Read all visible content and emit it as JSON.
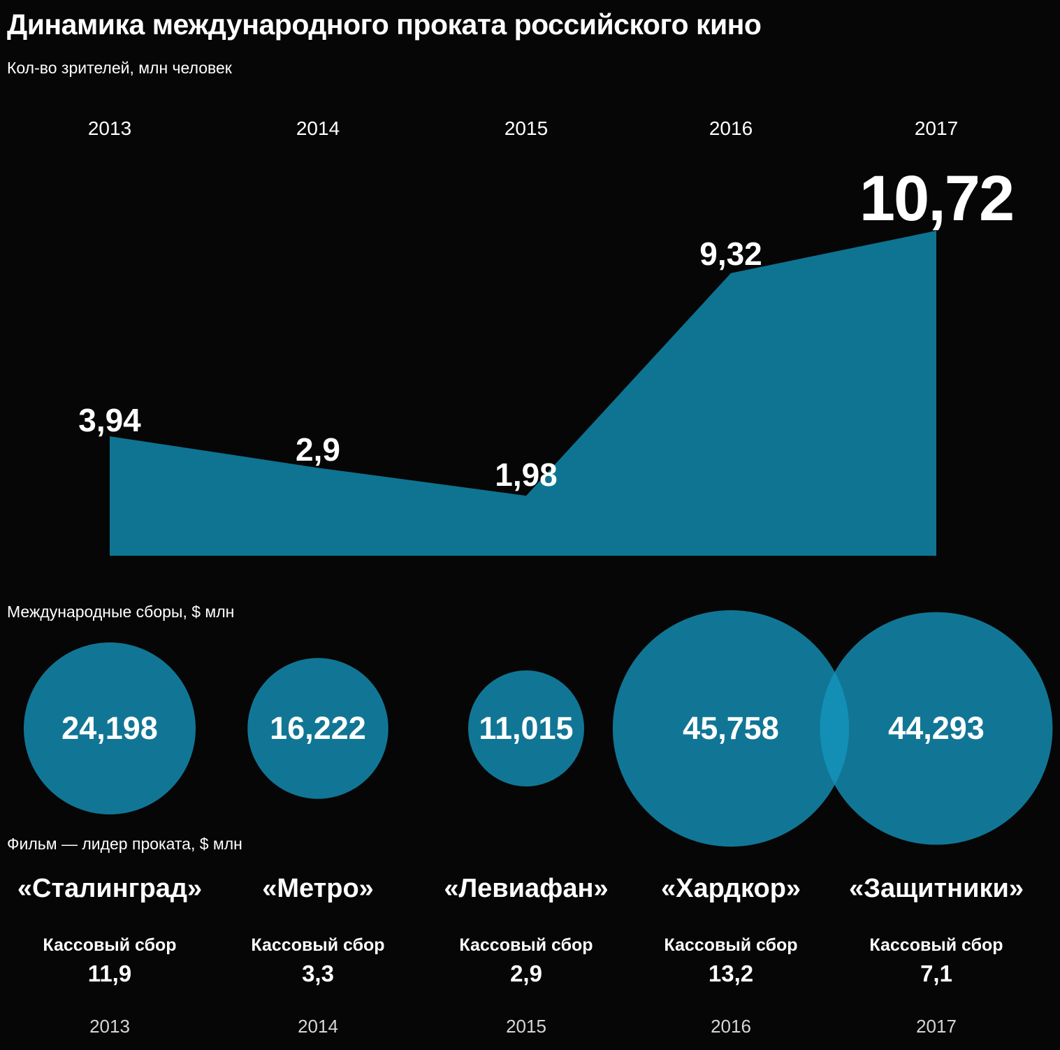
{
  "title": "Динамика международного проката российского кино",
  "colors": {
    "background": "#060606",
    "accent": "#0e7492",
    "bubble": "#1496be",
    "text": "#ffffff"
  },
  "chart_data": [
    {
      "type": "area",
      "title": "Динамика международного проката российского кино",
      "ylabel": "Кол-во зрителей, млн человек",
      "x": [
        "2013",
        "2014",
        "2015",
        "2016",
        "2017"
      ],
      "values": [
        3.94,
        2.9,
        1.98,
        9.32,
        10.72
      ],
      "value_labels": [
        "3,94",
        "2,9",
        "1,98",
        "9,32",
        "10,72"
      ],
      "ylim": [
        0,
        10.72
      ],
      "grid": false,
      "legend": false
    },
    {
      "type": "bubble",
      "title": "Международные сборы, $ млн",
      "x": [
        "2013",
        "2014",
        "2015",
        "2016",
        "2017"
      ],
      "values": [
        24.198,
        16.222,
        11.015,
        45.758,
        44.293
      ],
      "value_labels": [
        "24,198",
        "16,222",
        "11,015",
        "45,758",
        "44,293"
      ],
      "note": "bubble area proportional to value"
    },
    {
      "type": "table",
      "title": "Фильм — лидер проката, $ млн",
      "columns": [
        "2013",
        "2014",
        "2015",
        "2016",
        "2017"
      ],
      "rows": [
        {
          "year": "2013",
          "film": "«Сталинград»",
          "box_office_label": "Кассовый сбор",
          "box_office": 11.9,
          "box_office_display": "11,9"
        },
        {
          "year": "2014",
          "film": "«Метро»",
          "box_office_label": "Кассовый сбор",
          "box_office": 3.3,
          "box_office_display": "3,3"
        },
        {
          "year": "2015",
          "film": "«Левиафан»",
          "box_office_label": "Кассовый сбор",
          "box_office": 2.9,
          "box_office_display": "2,9"
        },
        {
          "year": "2016",
          "film": "«Хардкор»",
          "box_office_label": "Кассовый сбор",
          "box_office": 13.2,
          "box_office_display": "13,2"
        },
        {
          "year": "2017",
          "film": "«Защитники»",
          "box_office_label": "Кассовый сбор",
          "box_office": 7.1,
          "box_office_display": "7,1"
        }
      ]
    }
  ]
}
